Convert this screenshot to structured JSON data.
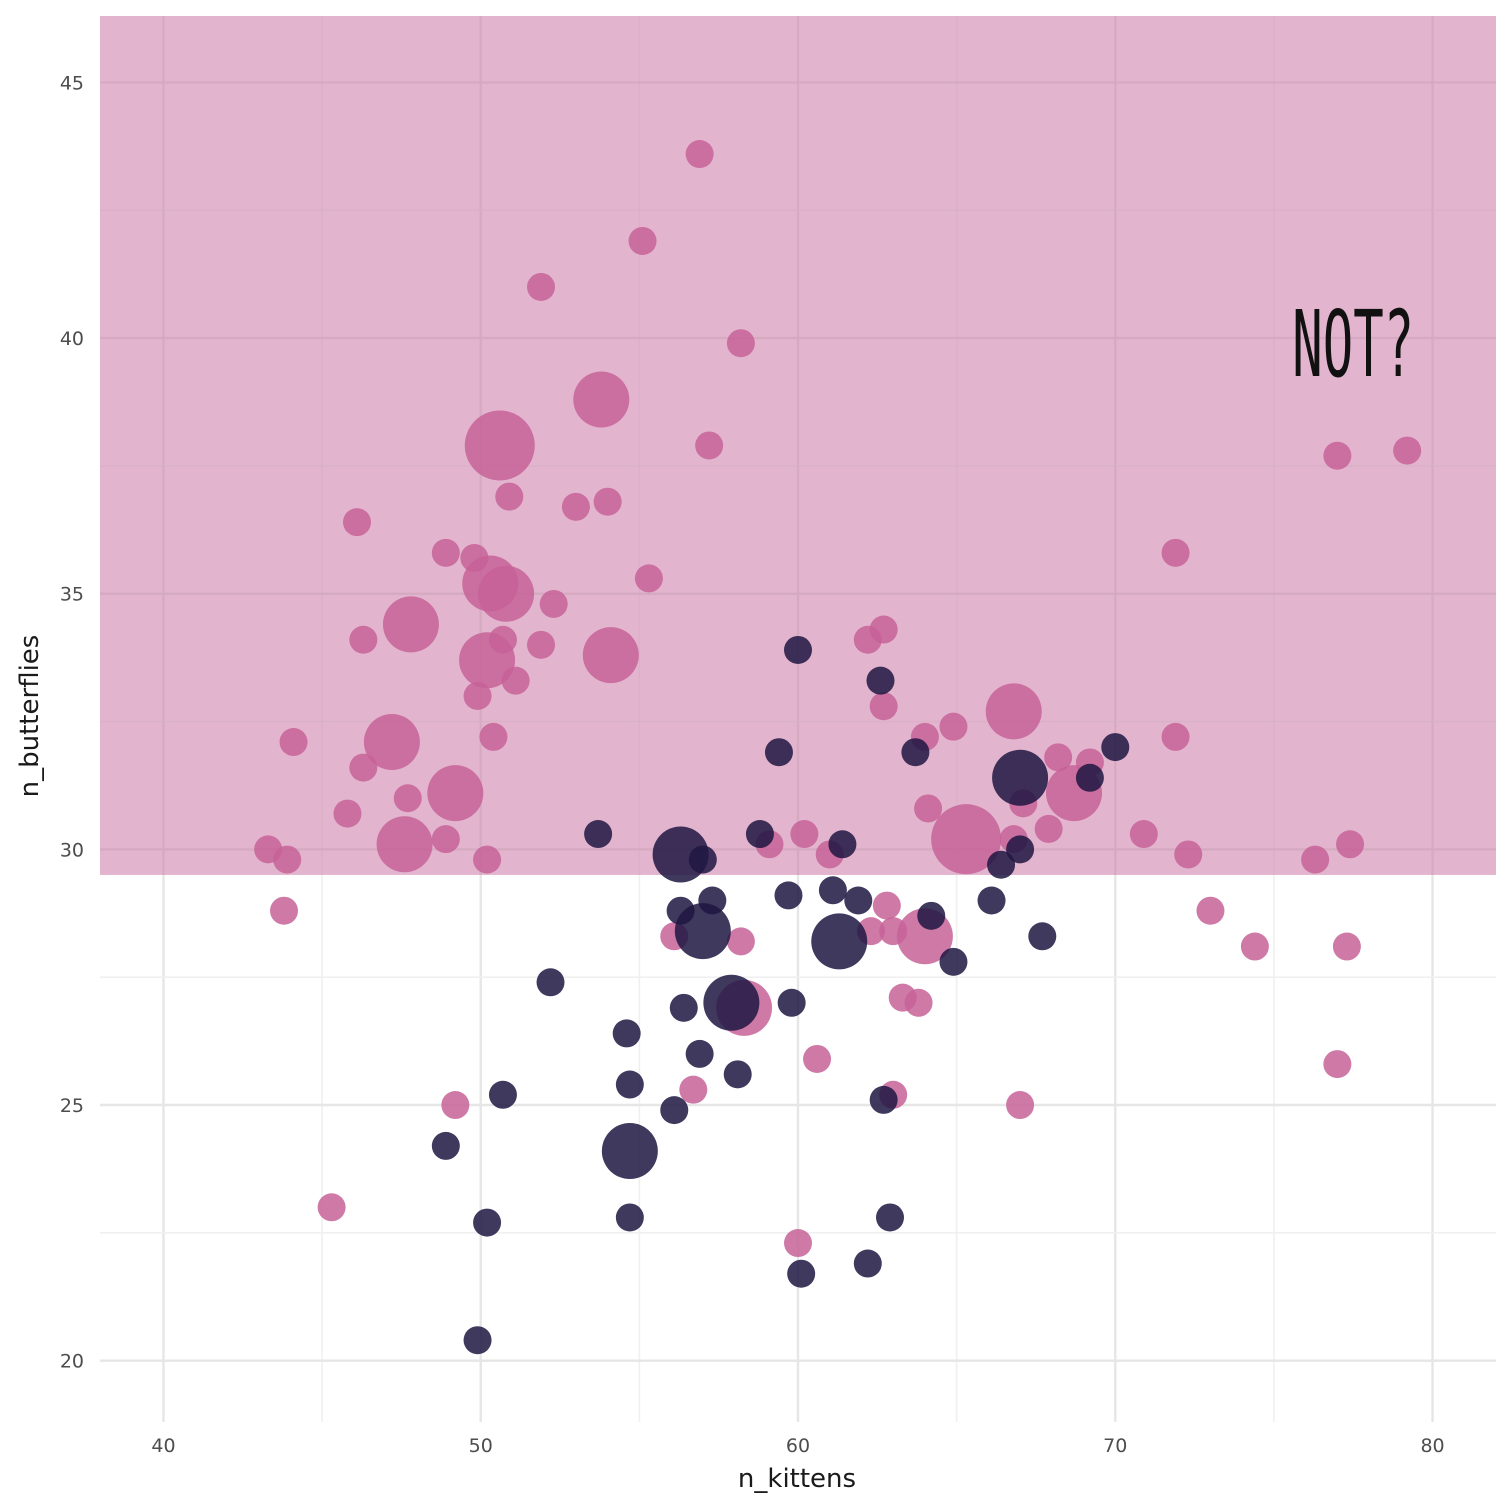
{
  "chart_data": {
    "type": "scatter",
    "title": "",
    "xlabel": "n_kittens",
    "ylabel": "n_butterflies",
    "xlim": [
      38,
      82
    ],
    "ylim": [
      18.8,
      46.3
    ],
    "x_ticks": [
      40,
      50,
      60,
      70,
      80
    ],
    "y_ticks": [
      20,
      25,
      30,
      35,
      40,
      45
    ],
    "grid": true,
    "highlight_band": {
      "y_min": 29.5,
      "y_max": 46.3,
      "color": "#e3b4ce"
    },
    "annotation": {
      "text": "NOT?",
      "x": 77.5,
      "y": 40
    },
    "colors": {
      "pink": "#c76198",
      "dark": "#1f1642"
    },
    "series": [
      {
        "color_key": "pink",
        "points": [
          {
            "x": 56.9,
            "y": 43.6,
            "size": 1
          },
          {
            "x": 55.1,
            "y": 41.9,
            "size": 1
          },
          {
            "x": 51.9,
            "y": 41.0,
            "size": 1
          },
          {
            "x": 58.2,
            "y": 39.9,
            "size": 1
          },
          {
            "x": 53.8,
            "y": 38.8,
            "size": 3
          },
          {
            "x": 50.6,
            "y": 37.9,
            "size": 4
          },
          {
            "x": 57.2,
            "y": 37.9,
            "size": 1
          },
          {
            "x": 50.9,
            "y": 36.9,
            "size": 1
          },
          {
            "x": 53.0,
            "y": 36.7,
            "size": 1
          },
          {
            "x": 54.0,
            "y": 36.8,
            "size": 1
          },
          {
            "x": 46.1,
            "y": 36.4,
            "size": 1
          },
          {
            "x": 48.9,
            "y": 35.8,
            "size": 1
          },
          {
            "x": 49.8,
            "y": 35.7,
            "size": 1
          },
          {
            "x": 50.3,
            "y": 35.2,
            "size": 3
          },
          {
            "x": 50.8,
            "y": 35.0,
            "size": 3
          },
          {
            "x": 55.3,
            "y": 35.3,
            "size": 1
          },
          {
            "x": 52.3,
            "y": 34.8,
            "size": 1
          },
          {
            "x": 47.8,
            "y": 34.4,
            "size": 3
          },
          {
            "x": 46.3,
            "y": 34.1,
            "size": 1
          },
          {
            "x": 50.7,
            "y": 34.1,
            "size": 1
          },
          {
            "x": 51.9,
            "y": 34.0,
            "size": 1
          },
          {
            "x": 54.1,
            "y": 33.8,
            "size": 3
          },
          {
            "x": 50.2,
            "y": 33.7,
            "size": 3
          },
          {
            "x": 51.1,
            "y": 33.3,
            "size": 1
          },
          {
            "x": 49.9,
            "y": 33.0,
            "size": 1
          },
          {
            "x": 50.4,
            "y": 32.2,
            "size": 1
          },
          {
            "x": 44.1,
            "y": 32.1,
            "size": 1
          },
          {
            "x": 47.2,
            "y": 32.1,
            "size": 3
          },
          {
            "x": 46.3,
            "y": 31.6,
            "size": 1
          },
          {
            "x": 49.2,
            "y": 31.1,
            "size": 3
          },
          {
            "x": 47.7,
            "y": 31.0,
            "size": 1
          },
          {
            "x": 45.8,
            "y": 30.7,
            "size": 1
          },
          {
            "x": 48.9,
            "y": 30.2,
            "size": 1
          },
          {
            "x": 47.6,
            "y": 30.1,
            "size": 3
          },
          {
            "x": 43.3,
            "y": 30.0,
            "size": 1
          },
          {
            "x": 43.9,
            "y": 29.8,
            "size": 1
          },
          {
            "x": 50.2,
            "y": 29.8,
            "size": 1
          },
          {
            "x": 43.8,
            "y": 28.8,
            "size": 1
          },
          {
            "x": 62.2,
            "y": 34.1,
            "size": 1
          },
          {
            "x": 62.7,
            "y": 34.3,
            "size": 1
          },
          {
            "x": 62.7,
            "y": 32.8,
            "size": 1
          },
          {
            "x": 64.0,
            "y": 32.2,
            "size": 1
          },
          {
            "x": 64.9,
            "y": 32.4,
            "size": 1
          },
          {
            "x": 66.8,
            "y": 32.7,
            "size": 3
          },
          {
            "x": 68.2,
            "y": 31.8,
            "size": 1
          },
          {
            "x": 69.2,
            "y": 31.7,
            "size": 1
          },
          {
            "x": 68.7,
            "y": 31.1,
            "size": 3
          },
          {
            "x": 67.1,
            "y": 30.9,
            "size": 1
          },
          {
            "x": 64.1,
            "y": 30.8,
            "size": 1
          },
          {
            "x": 67.9,
            "y": 30.4,
            "size": 1
          },
          {
            "x": 70.9,
            "y": 30.3,
            "size": 1
          },
          {
            "x": 60.2,
            "y": 30.3,
            "size": 1
          },
          {
            "x": 65.3,
            "y": 30.2,
            "size": 4
          },
          {
            "x": 66.8,
            "y": 30.2,
            "size": 1
          },
          {
            "x": 59.1,
            "y": 30.1,
            "size": 1
          },
          {
            "x": 61.0,
            "y": 29.9,
            "size": 1
          },
          {
            "x": 72.3,
            "y": 29.9,
            "size": 1
          },
          {
            "x": 71.9,
            "y": 35.8,
            "size": 1
          },
          {
            "x": 71.9,
            "y": 32.2,
            "size": 1
          },
          {
            "x": 77.0,
            "y": 37.7,
            "size": 1
          },
          {
            "x": 79.2,
            "y": 37.8,
            "size": 1
          },
          {
            "x": 77.4,
            "y": 30.1,
            "size": 1
          },
          {
            "x": 76.3,
            "y": 29.8,
            "size": 1
          },
          {
            "x": 73.0,
            "y": 28.8,
            "size": 1
          },
          {
            "x": 74.4,
            "y": 28.1,
            "size": 1
          },
          {
            "x": 77.3,
            "y": 28.1,
            "size": 1
          },
          {
            "x": 77.0,
            "y": 25.8,
            "size": 1
          },
          {
            "x": 56.1,
            "y": 28.3,
            "size": 1
          },
          {
            "x": 58.2,
            "y": 28.2,
            "size": 1
          },
          {
            "x": 62.8,
            "y": 28.9,
            "size": 1
          },
          {
            "x": 62.3,
            "y": 28.4,
            "size": 1
          },
          {
            "x": 63.0,
            "y": 28.4,
            "size": 1
          },
          {
            "x": 64.0,
            "y": 28.3,
            "size": 3
          },
          {
            "x": 58.3,
            "y": 26.9,
            "size": 3
          },
          {
            "x": 63.3,
            "y": 27.1,
            "size": 1
          },
          {
            "x": 63.8,
            "y": 27.0,
            "size": 1
          },
          {
            "x": 60.6,
            "y": 25.9,
            "size": 1
          },
          {
            "x": 56.7,
            "y": 25.3,
            "size": 1
          },
          {
            "x": 63.0,
            "y": 25.2,
            "size": 1
          },
          {
            "x": 67.0,
            "y": 25.0,
            "size": 1
          },
          {
            "x": 49.2,
            "y": 25.0,
            "size": 1
          },
          {
            "x": 45.3,
            "y": 23.0,
            "size": 1
          },
          {
            "x": 60.0,
            "y": 22.3,
            "size": 1
          }
        ]
      },
      {
        "color_key": "dark",
        "points": [
          {
            "x": 60.0,
            "y": 33.9,
            "size": 1
          },
          {
            "x": 62.6,
            "y": 33.3,
            "size": 1
          },
          {
            "x": 63.7,
            "y": 31.9,
            "size": 1
          },
          {
            "x": 59.4,
            "y": 31.9,
            "size": 1
          },
          {
            "x": 70.0,
            "y": 32.0,
            "size": 1
          },
          {
            "x": 67.0,
            "y": 31.4,
            "size": 3
          },
          {
            "x": 69.2,
            "y": 31.4,
            "size": 1
          },
          {
            "x": 53.7,
            "y": 30.3,
            "size": 1
          },
          {
            "x": 58.8,
            "y": 30.3,
            "size": 1
          },
          {
            "x": 61.4,
            "y": 30.1,
            "size": 1
          },
          {
            "x": 56.3,
            "y": 29.9,
            "size": 3
          },
          {
            "x": 57.0,
            "y": 29.8,
            "size": 1
          },
          {
            "x": 67.0,
            "y": 30.0,
            "size": 1
          },
          {
            "x": 66.4,
            "y": 29.7,
            "size": 1
          },
          {
            "x": 57.3,
            "y": 29.0,
            "size": 1
          },
          {
            "x": 59.7,
            "y": 29.1,
            "size": 1
          },
          {
            "x": 61.1,
            "y": 29.2,
            "size": 1
          },
          {
            "x": 61.9,
            "y": 29.0,
            "size": 1
          },
          {
            "x": 66.1,
            "y": 29.0,
            "size": 1
          },
          {
            "x": 56.3,
            "y": 28.8,
            "size": 1
          },
          {
            "x": 64.2,
            "y": 28.7,
            "size": 1
          },
          {
            "x": 57.0,
            "y": 28.4,
            "size": 3
          },
          {
            "x": 61.3,
            "y": 28.2,
            "size": 3
          },
          {
            "x": 67.7,
            "y": 28.3,
            "size": 1
          },
          {
            "x": 64.9,
            "y": 27.8,
            "size": 1
          },
          {
            "x": 52.2,
            "y": 27.4,
            "size": 1
          },
          {
            "x": 57.9,
            "y": 27.0,
            "size": 3
          },
          {
            "x": 56.4,
            "y": 26.9,
            "size": 1
          },
          {
            "x": 59.8,
            "y": 27.0,
            "size": 1
          },
          {
            "x": 54.6,
            "y": 26.4,
            "size": 1
          },
          {
            "x": 56.9,
            "y": 26.0,
            "size": 1
          },
          {
            "x": 58.1,
            "y": 25.6,
            "size": 1
          },
          {
            "x": 54.7,
            "y": 25.4,
            "size": 1
          },
          {
            "x": 50.7,
            "y": 25.2,
            "size": 1
          },
          {
            "x": 62.7,
            "y": 25.1,
            "size": 1
          },
          {
            "x": 56.1,
            "y": 24.9,
            "size": 1
          },
          {
            "x": 48.9,
            "y": 24.2,
            "size": 1
          },
          {
            "x": 54.7,
            "y": 24.1,
            "size": 3
          },
          {
            "x": 54.7,
            "y": 22.8,
            "size": 1
          },
          {
            "x": 62.9,
            "y": 22.8,
            "size": 1
          },
          {
            "x": 50.2,
            "y": 22.7,
            "size": 1
          },
          {
            "x": 62.2,
            "y": 21.9,
            "size": 1
          },
          {
            "x": 60.1,
            "y": 21.7,
            "size": 1
          },
          {
            "x": 49.9,
            "y": 20.4,
            "size": 1
          }
        ]
      }
    ]
  }
}
